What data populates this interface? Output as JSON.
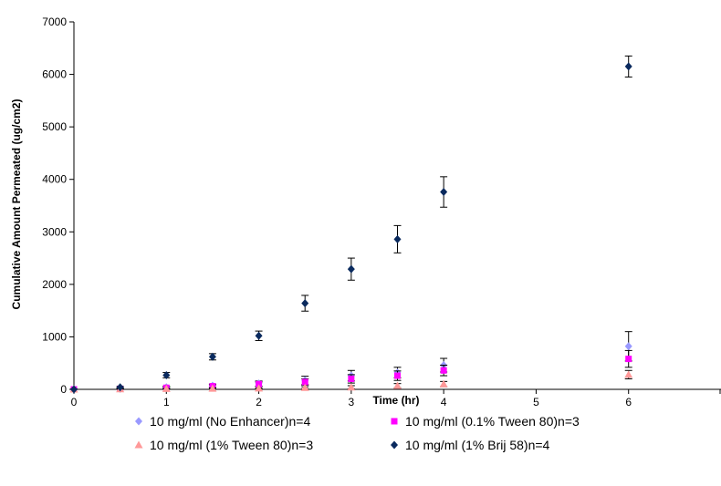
{
  "chart_data": {
    "type": "scatter",
    "xlabel": "Time (hr)",
    "ylabel": "Cumulative Amount Permeated (ug/cm2)",
    "xlim": [
      0,
      7
    ],
    "ylim": [
      0,
      7000
    ],
    "x_ticks": [
      "0",
      "1",
      "2",
      "3",
      "4",
      "5",
      "6"
    ],
    "y_ticks": [
      "0",
      "1000",
      "2000",
      "3000",
      "4000",
      "5000",
      "6000",
      "7000"
    ],
    "grid": false,
    "legend_position": "bottom",
    "series": [
      {
        "name": "10 mg/ml (No Enhancer)n=4",
        "color": "#9999ff",
        "marker": "diamond",
        "x": [
          0,
          0.5,
          1,
          1.5,
          2,
          2.5,
          3,
          3.5,
          4,
          6
        ],
        "y": [
          0,
          10,
          40,
          70,
          110,
          170,
          260,
          320,
          460,
          820
        ],
        "err": [
          5,
          10,
          20,
          30,
          50,
          80,
          100,
          100,
          130,
          280
        ]
      },
      {
        "name": "10 mg/ml (0.1% Tween 80)n=3",
        "color": "#ff00ff",
        "marker": "square",
        "x": [
          0,
          0.5,
          1,
          1.5,
          2,
          2.5,
          3,
          3.5,
          4,
          6
        ],
        "y": [
          0,
          10,
          30,
          60,
          100,
          140,
          200,
          260,
          360,
          580
        ],
        "err": [
          5,
          10,
          15,
          25,
          40,
          60,
          80,
          90,
          100,
          160
        ]
      },
      {
        "name": "10 mg/ml (1% Tween 80)n=3",
        "color": "#ff9999",
        "marker": "triangle",
        "x": [
          0,
          0.5,
          1,
          1.5,
          2,
          2.5,
          3,
          3.5,
          4,
          6
        ],
        "y": [
          0,
          5,
          10,
          15,
          20,
          30,
          40,
          70,
          100,
          280
        ],
        "err": [
          3,
          5,
          5,
          10,
          10,
          20,
          30,
          40,
          50,
          80
        ]
      },
      {
        "name": "10 mg/ml (1% Brij 58)n=4",
        "color": "#0a2a5e",
        "marker": "diamond",
        "x": [
          0,
          0.5,
          1,
          1.5,
          2,
          2.5,
          3,
          3.5,
          4,
          6
        ],
        "y": [
          0,
          40,
          270,
          620,
          1020,
          1640,
          2290,
          2860,
          3760,
          6150
        ],
        "err": [
          5,
          15,
          50,
          60,
          90,
          150,
          210,
          260,
          290,
          200
        ]
      }
    ]
  }
}
